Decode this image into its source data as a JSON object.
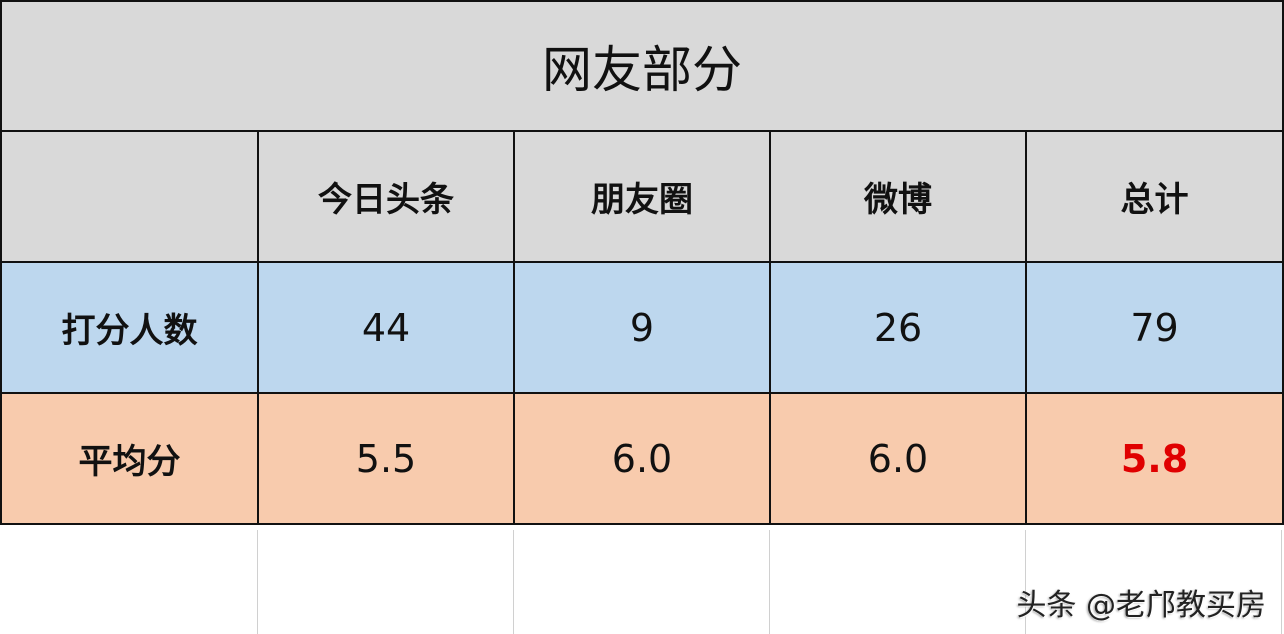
{
  "title": "网友部分",
  "columns": [
    "",
    "今日头条",
    "朋友圈",
    "微博",
    "总计"
  ],
  "rows": [
    {
      "label": "打分人数",
      "values": [
        "44",
        "9",
        "26",
        "79"
      ]
    },
    {
      "label": "平均分",
      "values": [
        "5.5",
        "6.0",
        "6.0",
        "5.8"
      ]
    }
  ],
  "colors": {
    "header_bg": "#d9d9d9",
    "count_row_bg": "#bdd7ee",
    "avg_row_bg": "#f8cbad",
    "highlight": "#e00000"
  },
  "watermark": "头条 @老邝教买房"
}
